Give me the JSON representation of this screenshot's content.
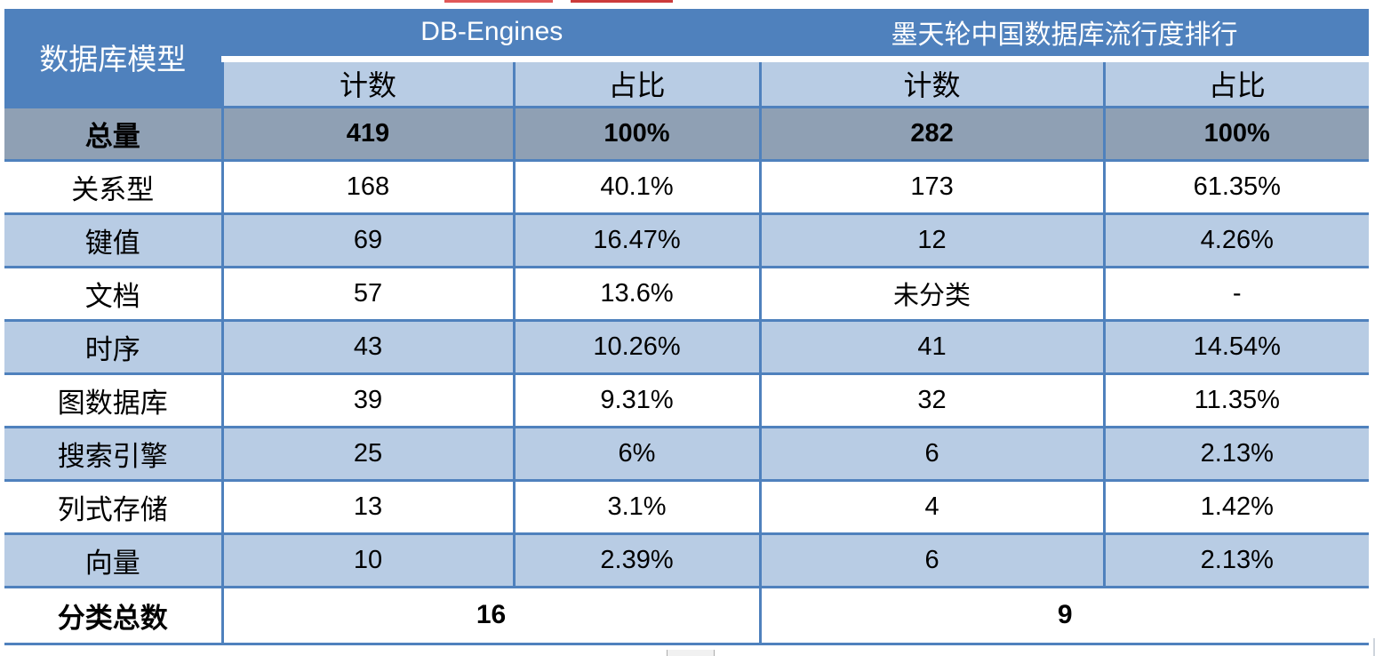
{
  "table": {
    "header": {
      "model_column": "数据库模型",
      "groups": [
        {
          "label": "DB-Engines"
        },
        {
          "label": "墨天轮中国数据库流行度排行"
        }
      ],
      "subheaders": [
        "计数",
        "占比",
        "计数",
        "占比"
      ]
    },
    "rows": [
      {
        "label": "总量",
        "de_count": "419",
        "de_pct": "100%",
        "mt_count": "282",
        "mt_pct": "100%"
      },
      {
        "label": "关系型",
        "de_count": "168",
        "de_pct": "40.1%",
        "mt_count": "173",
        "mt_pct": "61.35%"
      },
      {
        "label": "键值",
        "de_count": "69",
        "de_pct": "16.47%",
        "mt_count": "12",
        "mt_pct": "4.26%"
      },
      {
        "label": "文档",
        "de_count": "57",
        "de_pct": "13.6%",
        "mt_count": "未分类",
        "mt_pct": "-"
      },
      {
        "label": "时序",
        "de_count": "43",
        "de_pct": "10.26%",
        "mt_count": "41",
        "mt_pct": "14.54%"
      },
      {
        "label": "图数据库",
        "de_count": "39",
        "de_pct": "9.31%",
        "mt_count": "32",
        "mt_pct": "11.35%"
      },
      {
        "label": "搜索引擎",
        "de_count": "25",
        "de_pct": "6%",
        "mt_count": "6",
        "mt_pct": "2.13%"
      },
      {
        "label": "列式存储",
        "de_count": "13",
        "de_pct": "3.1%",
        "mt_count": "4",
        "mt_pct": "1.42%"
      },
      {
        "label": "向量",
        "de_count": "10",
        "de_pct": "2.39%",
        "mt_count": "6",
        "mt_pct": "2.13%"
      }
    ],
    "footer": {
      "label": "分类总数",
      "de_total": "16",
      "mt_total": "9"
    }
  },
  "colors": {
    "header_blue": "#4f81bd",
    "subheader_light_blue": "#b8cce4",
    "total_row_gray": "#8fa0b4",
    "alt_row_blue": "#b8cce4",
    "row_white": "#ffffff",
    "border_blue": "#4f81bd",
    "artifact_red": "#e05858"
  },
  "chart_data": {
    "type": "table",
    "columns": [
      "数据库模型",
      "DB-Engines 计数",
      "DB-Engines 占比",
      "墨天轮中国数据库流行度排行 计数",
      "墨天轮中国数据库流行度排行 占比"
    ],
    "rows": [
      [
        "总量",
        "419",
        "100%",
        "282",
        "100%"
      ],
      [
        "关系型",
        "168",
        "40.1%",
        "173",
        "61.35%"
      ],
      [
        "键值",
        "69",
        "16.47%",
        "12",
        "4.26%"
      ],
      [
        "文档",
        "57",
        "13.6%",
        "未分类",
        "-"
      ],
      [
        "时序",
        "43",
        "10.26%",
        "41",
        "14.54%"
      ],
      [
        "图数据库",
        "39",
        "9.31%",
        "32",
        "11.35%"
      ],
      [
        "搜索引擎",
        "25",
        "6%",
        "6",
        "2.13%"
      ],
      [
        "列式存储",
        "13",
        "3.1%",
        "4",
        "1.42%"
      ],
      [
        "向量",
        "10",
        "2.39%",
        "6",
        "2.13%"
      ],
      [
        "分类总数",
        "16",
        "",
        "9",
        ""
      ]
    ],
    "layout": "DB-Engines group spans columns 2-3; 墨天轮 group spans columns 4-5; 总量 row highlighted gray; data rows alternate white / light blue"
  }
}
